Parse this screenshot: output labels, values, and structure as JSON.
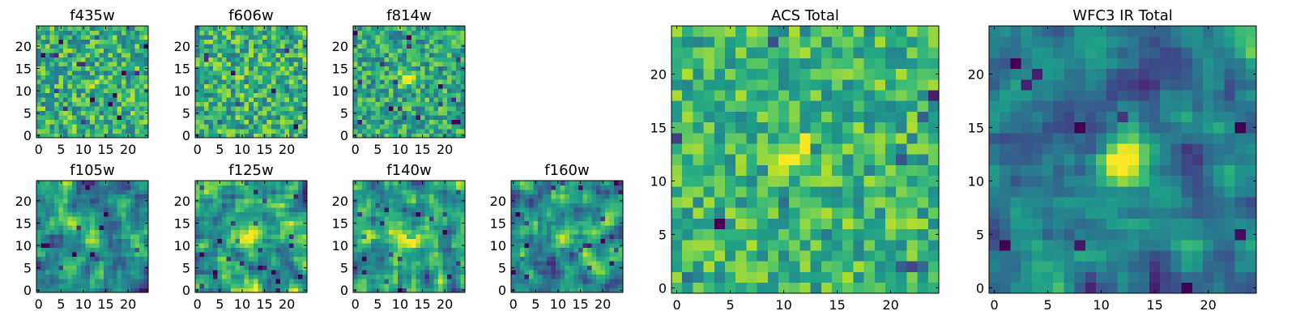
{
  "chart_data": [
    {
      "type": "heatmap",
      "title": "f435w",
      "xticks": [
        0,
        5,
        10,
        15,
        20
      ],
      "yticks": [
        0,
        5,
        10,
        15,
        20
      ],
      "xlim": [
        -0.5,
        24.5
      ],
      "ylim": [
        -0.5,
        24.5
      ],
      "grid": false,
      "colormap": "viridis",
      "source_size": 25,
      "pattern": {
        "noise": 0.26,
        "base": 0.64,
        "peak": 0.06,
        "center": [
          12,
          12
        ],
        "sigma": 2.0,
        "blur": 0,
        "seed": 11
      }
    },
    {
      "type": "heatmap",
      "title": "f606w",
      "xticks": [
        0,
        5,
        10,
        15,
        20
      ],
      "yticks": [
        0,
        5,
        10,
        15,
        20
      ],
      "xlim": [
        -0.5,
        24.5
      ],
      "ylim": [
        -0.5,
        24.5
      ],
      "grid": false,
      "colormap": "viridis",
      "source_size": 25,
      "pattern": {
        "noise": 0.26,
        "base": 0.64,
        "peak": 0.08,
        "center": [
          12,
          12
        ],
        "sigma": 2.0,
        "blur": 0,
        "seed": 23
      }
    },
    {
      "type": "heatmap",
      "title": "f814w",
      "xticks": [
        0,
        5,
        10,
        15,
        20
      ],
      "yticks": [
        0,
        5,
        10,
        15,
        20
      ],
      "xlim": [
        -0.5,
        24.5
      ],
      "ylim": [
        -0.5,
        24.5
      ],
      "grid": false,
      "colormap": "viridis",
      "source_size": 25,
      "pattern": {
        "noise": 0.24,
        "base": 0.6,
        "peak": 0.38,
        "center": [
          11.5,
          12.5
        ],
        "sigma": 1.2,
        "blur": 0,
        "seed": 37
      }
    },
    {
      "type": "heatmap",
      "title": "f105w",
      "xticks": [
        0,
        5,
        10,
        15,
        20
      ],
      "yticks": [
        0,
        5,
        10,
        15,
        20
      ],
      "xlim": [
        -0.5,
        24.5
      ],
      "ylim": [
        -0.5,
        24.5
      ],
      "grid": false,
      "colormap": "viridis",
      "source_size": 25,
      "pattern": {
        "noise": 0.3,
        "base": 0.48,
        "peak": 0.42,
        "center": [
          12,
          12
        ],
        "sigma": 1.6,
        "blur": 1,
        "seed": 41
      }
    },
    {
      "type": "heatmap",
      "title": "f125w",
      "xticks": [
        0,
        5,
        10,
        15,
        20
      ],
      "yticks": [
        0,
        5,
        10,
        15,
        20
      ],
      "xlim": [
        -0.5,
        24.5
      ],
      "ylim": [
        -0.5,
        24.5
      ],
      "grid": false,
      "colormap": "viridis",
      "source_size": 25,
      "pattern": {
        "noise": 0.32,
        "base": 0.58,
        "peak": 0.36,
        "center": [
          12,
          12
        ],
        "sigma": 1.7,
        "blur": 1,
        "seed": 53
      }
    },
    {
      "type": "heatmap",
      "title": "f140w",
      "xticks": [
        0,
        5,
        10,
        15,
        20
      ],
      "yticks": [
        0,
        5,
        10,
        15,
        20
      ],
      "xlim": [
        -0.5,
        24.5
      ],
      "ylim": [
        -0.5,
        24.5
      ],
      "grid": false,
      "colormap": "viridis",
      "source_size": 25,
      "pattern": {
        "noise": 0.32,
        "base": 0.56,
        "peak": 0.34,
        "center": [
          12,
          12
        ],
        "sigma": 1.8,
        "blur": 1,
        "seed": 67
      }
    },
    {
      "type": "heatmap",
      "title": "f160w",
      "xticks": [
        0,
        5,
        10,
        15,
        20
      ],
      "yticks": [
        0,
        5,
        10,
        15,
        20
      ],
      "xlim": [
        -0.5,
        24.5
      ],
      "ylim": [
        -0.5,
        24.5
      ],
      "grid": false,
      "colormap": "viridis",
      "source_size": 25,
      "pattern": {
        "noise": 0.32,
        "base": 0.5,
        "peak": 0.44,
        "center": [
          12.5,
          12.5
        ],
        "sigma": 1.7,
        "blur": 1,
        "seed": 79
      }
    },
    {
      "type": "heatmap",
      "title": "ACS Total",
      "xticks": [
        0,
        5,
        10,
        15,
        20
      ],
      "yticks": [
        0,
        5,
        10,
        15,
        20
      ],
      "xlim": [
        -0.5,
        24.5
      ],
      "ylim": [
        -0.5,
        24.5
      ],
      "grid": false,
      "colormap": "viridis",
      "source_size": 25,
      "pattern": {
        "noise": 0.22,
        "base": 0.66,
        "peak": 0.3,
        "center": [
          11.5,
          12.5
        ],
        "sigma": 1.4,
        "blur": 0,
        "seed": 97
      }
    },
    {
      "type": "heatmap",
      "title": "WFC3 IR Total",
      "xticks": [
        0,
        5,
        10,
        15,
        20
      ],
      "yticks": [
        0,
        5,
        10,
        15,
        20
      ],
      "xlim": [
        -0.5,
        24.5
      ],
      "ylim": [
        -0.5,
        24.5
      ],
      "grid": false,
      "colormap": "viridis",
      "source_size": 25,
      "pattern": {
        "noise": 0.24,
        "base": 0.44,
        "peak": 0.5,
        "center": [
          12,
          12
        ],
        "sigma": 1.6,
        "blur": 1,
        "seed": 101
      }
    }
  ],
  "colors": {
    "colormap_stops": [
      "#440154",
      "#482878",
      "#3e4989",
      "#31688e",
      "#26828e",
      "#1f9e89",
      "#35b779",
      "#6ece58",
      "#b5de2b",
      "#fde725"
    ],
    "axis": "#000000",
    "background": "#ffffff"
  }
}
